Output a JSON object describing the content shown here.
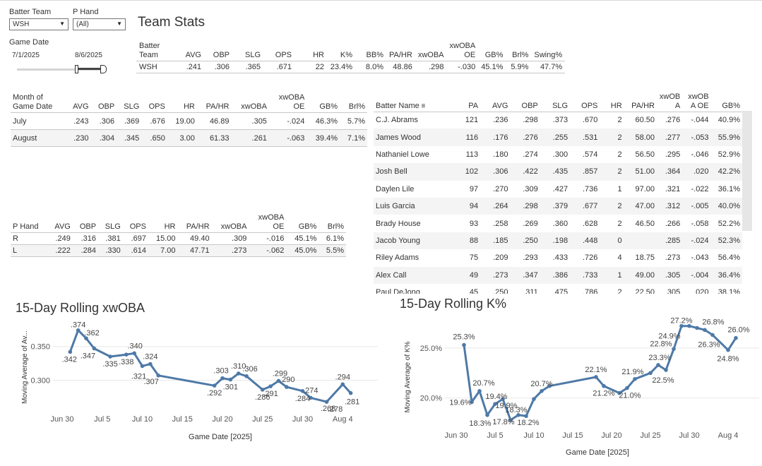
{
  "filters": {
    "batter_team": {
      "label": "Batter Team",
      "value": "WSH"
    },
    "p_hand": {
      "label": "P Hand",
      "value": "(All)"
    },
    "game_date": {
      "label": "Game Date",
      "start": "7/1/2025",
      "end": "8/6/2025"
    }
  },
  "team_stats": {
    "title": "Team Stats",
    "headers": [
      "Batter\nTeam",
      "AVG",
      "OBP",
      "SLG",
      "OPS",
      "HR",
      "K%",
      "BB%",
      "PA/HR",
      "xwOBA",
      "xwOBA\nOE",
      "GB%",
      "Brl%",
      "Swing%"
    ],
    "row": [
      "WSH",
      ".241",
      ".306",
      ".365",
      ".671",
      "22",
      "23.4%",
      "8.0%",
      "48.86",
      ".298",
      "-.030",
      "45.1%",
      "5.9%",
      "47.7%"
    ]
  },
  "month_table": {
    "headers": [
      "Month of\nGame Date",
      "AVG",
      "OBP",
      "SLG",
      "OPS",
      "HR",
      "PA/HR",
      "xwOBA",
      "xwOBA\nOE",
      "GB%",
      "Brl%"
    ],
    "rows": [
      [
        "July",
        ".243",
        ".306",
        ".369",
        ".676",
        "19.00",
        "46.89",
        ".305",
        "-.024",
        "46.3%",
        "5.7%"
      ],
      [
        "August",
        ".230",
        ".304",
        ".345",
        ".650",
        "3.00",
        "61.33",
        ".261",
        "-.063",
        "39.4%",
        "7.1%"
      ]
    ]
  },
  "phand_table": {
    "headers": [
      "P Hand",
      "AVG",
      "OBP",
      "SLG",
      "OPS",
      "HR",
      "PA/HR",
      "xwOBA",
      "xwOBA\nOE",
      "GB%",
      "Brl%"
    ],
    "rows": [
      [
        "R",
        ".249",
        ".316",
        ".381",
        ".697",
        "15.00",
        "49.40",
        ".309",
        "-.016",
        "45.1%",
        "6.1%"
      ],
      [
        "L",
        ".222",
        ".284",
        ".330",
        ".614",
        "7.00",
        "47.71",
        ".273",
        "-.062",
        "45.0%",
        "5.5%"
      ]
    ]
  },
  "batter_table": {
    "headers": [
      "Batter Name",
      "PA",
      "AVG",
      "OBP",
      "SLG",
      "OPS",
      "HR",
      "PA/HR",
      "xwOB\nA",
      "xwOB\nA OE",
      "GB%"
    ],
    "sort_icon": "sort-desc-icon",
    "rows": [
      [
        "C.J. Abrams",
        "121",
        ".236",
        ".298",
        ".373",
        ".670",
        "2",
        "60.50",
        ".276",
        "-.044",
        "40.9%"
      ],
      [
        "James Wood",
        "116",
        ".176",
        ".276",
        ".255",
        ".531",
        "2",
        "58.00",
        ".277",
        "-.053",
        "55.9%"
      ],
      [
        "Nathaniel Lowe",
        "113",
        ".180",
        ".274",
        ".300",
        ".574",
        "2",
        "56.50",
        ".295",
        "-.046",
        "52.9%"
      ],
      [
        "Josh Bell",
        "102",
        ".306",
        ".422",
        ".435",
        ".857",
        "2",
        "51.00",
        ".364",
        ".020",
        "42.2%"
      ],
      [
        "Daylen Lile",
        "97",
        ".270",
        ".309",
        ".427",
        ".736",
        "1",
        "97.00",
        ".321",
        "-.022",
        "36.1%"
      ],
      [
        "Luis Garcia",
        "94",
        ".264",
        ".298",
        ".379",
        ".677",
        "2",
        "47.00",
        ".312",
        "-.005",
        "40.0%"
      ],
      [
        "Brady House",
        "93",
        ".258",
        ".269",
        ".360",
        ".628",
        "2",
        "46.50",
        ".266",
        "-.058",
        "52.2%"
      ],
      [
        "Jacob Young",
        "88",
        ".185",
        ".250",
        ".198",
        ".448",
        "0",
        "",
        ".285",
        "-.024",
        "52.3%"
      ],
      [
        "Riley Adams",
        "75",
        ".209",
        ".293",
        ".433",
        ".726",
        "4",
        "18.75",
        ".273",
        "-.043",
        "56.4%"
      ],
      [
        "Alex Call",
        "49",
        ".273",
        ".347",
        ".386",
        ".733",
        "1",
        "49.00",
        ".305",
        "-.004",
        "36.4%"
      ],
      [
        "Paul DeJong",
        "45",
        ".250",
        ".311",
        ".475",
        ".786",
        "2",
        "22.50",
        ".305",
        ".020",
        "38.1%"
      ]
    ]
  },
  "colors": {
    "line": "#4e79a7",
    "grid": "#e8e8e8",
    "shade": "#f4f4f4"
  },
  "chart_data": [
    {
      "type": "line",
      "title": "15-Day Rolling xwOBA",
      "xlabel": "Game Date [2025]",
      "ylabel": "Moving Average of Av...",
      "ylim": [
        0.265,
        0.38
      ],
      "yticks": [
        0.3,
        0.35
      ],
      "ytick_labels": [
        "0.300",
        "0.350"
      ],
      "xticks": [
        0,
        5,
        10,
        15,
        20,
        25,
        30,
        35
      ],
      "xtick_labels": [
        "Jun 30",
        "Jul 5",
        "Jul 10",
        "Jul 15",
        "Jul 20",
        "Jul 25",
        "Jul 30",
        "Aug 4"
      ],
      "x": [
        1,
        2,
        3,
        4,
        6,
        8,
        9,
        10,
        11,
        12,
        19,
        20,
        21,
        22,
        23,
        25,
        26,
        27,
        28,
        30,
        31,
        33,
        35,
        36
      ],
      "values": [
        0.342,
        0.374,
        0.362,
        0.347,
        0.335,
        0.338,
        0.34,
        0.321,
        0.324,
        0.307,
        0.292,
        0.303,
        0.301,
        0.31,
        0.306,
        0.286,
        0.291,
        0.299,
        0.29,
        0.284,
        0.274,
        0.268,
        0.294,
        0.281
      ],
      "labels": [
        ".342",
        ".374",
        ".362",
        ".347",
        ".335",
        ".338",
        ".340",
        ".321",
        ".324",
        ".307",
        ".292",
        ".303",
        ".301",
        ".310",
        ".306",
        ".286",
        ".291",
        ".299",
        ".290",
        ".284",
        ".274",
        ".268",
        ".294",
        ".281"
      ],
      "extra_labels": [
        ".278"
      ]
    },
    {
      "type": "line",
      "title": "15-Day Rolling K%",
      "xlabel": "Game Date [2025]",
      "ylabel": "Moving Average of K%",
      "ylim": [
        17.3,
        27.6
      ],
      "yticks": [
        20.0,
        25.0
      ],
      "ytick_labels": [
        "20.0%",
        "25.0%"
      ],
      "xticks": [
        0,
        5,
        10,
        15,
        20,
        25,
        30,
        35
      ],
      "xtick_labels": [
        "Jun 30",
        "Jul 5",
        "Jul 10",
        "Jul 15",
        "Jul 20",
        "Jul 25",
        "Jul 30",
        "Aug 4"
      ],
      "x": [
        1,
        2,
        3,
        4,
        5,
        6,
        7,
        8,
        9,
        10,
        11,
        12,
        18,
        19,
        21,
        22,
        23,
        25,
        26,
        27,
        28,
        29,
        30,
        31,
        32,
        33,
        35,
        36
      ],
      "values": [
        25.3,
        19.6,
        20.7,
        18.3,
        19.4,
        19.9,
        17.8,
        18.3,
        18.2,
        19.9,
        20.7,
        21.2,
        22.1,
        21.2,
        20.5,
        21.0,
        21.9,
        22.5,
        23.3,
        22.8,
        24.9,
        27.2,
        27.2,
        27.0,
        26.8,
        26.3,
        24.8,
        26.0
      ],
      "labels": [
        "25.3%",
        "19.6%",
        "20.7%",
        "18.3%",
        "19.4%",
        "19.9%",
        "17.8%",
        "18.3%",
        "18.2%",
        "20.7%",
        "21.2%",
        "22.1%",
        "21.9%",
        "21.0%",
        "23.3%",
        "22.5%",
        "22.8%",
        "24.9%",
        "27.2%",
        "26.3%",
        "26.8%",
        "24.8%",
        "26.0%"
      ]
    }
  ]
}
